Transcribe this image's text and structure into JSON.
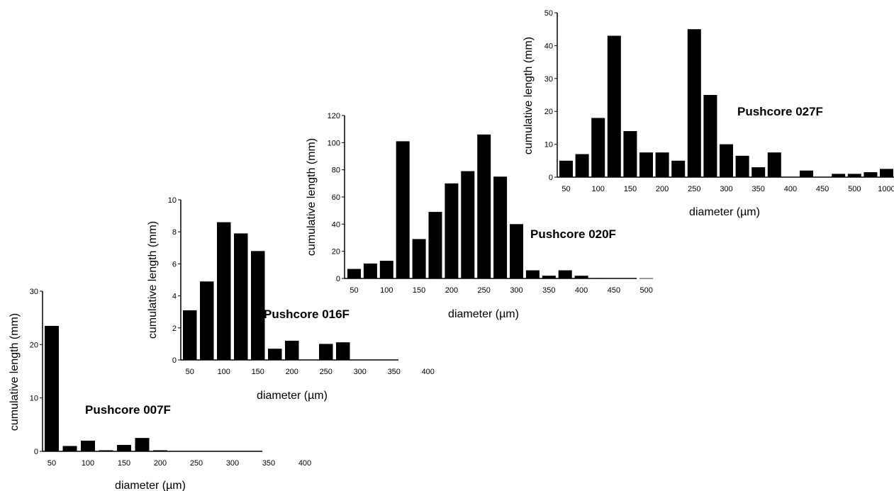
{
  "chart_data": [
    {
      "type": "bar",
      "title": "Pushcore 007F",
      "xlabel": "diameter (µm)",
      "ylabel": "cumulative length (mm)",
      "x_ticks": [
        "50",
        "100",
        "150",
        "200",
        "250",
        "300",
        "350",
        "400"
      ],
      "y_ticks": [
        0,
        10,
        20,
        30
      ],
      "ylim": [
        0,
        30
      ],
      "values": [
        23.5,
        1.0,
        2.0,
        0.2,
        1.2,
        2.5,
        0.2,
        0,
        0,
        0,
        0,
        0,
        0,
        0,
        0
      ]
    },
    {
      "type": "bar",
      "title": "Pushcore 016F",
      "xlabel": "diameter (µm)",
      "ylabel": "cumulative length (mm)",
      "x_ticks": [
        "50",
        "100",
        "150",
        "200",
        "250",
        "300",
        "350",
        "400"
      ],
      "y_ticks": [
        0,
        2,
        4,
        6,
        8,
        10
      ],
      "ylim": [
        0,
        10
      ],
      "values": [
        3.1,
        4.9,
        8.6,
        7.9,
        6.8,
        0.7,
        1.2,
        0,
        1.0,
        1.1,
        0,
        0,
        0,
        0,
        0
      ]
    },
    {
      "type": "bar",
      "title": "Pushcore 020F",
      "xlabel": "diameter (µm)",
      "ylabel": "cumulative length (mm)",
      "x_ticks": [
        "50",
        "100",
        "150",
        "200",
        "250",
        "300",
        "350",
        "400",
        "450",
        "500"
      ],
      "y_ticks": [
        0,
        20,
        40,
        60,
        80,
        100,
        120
      ],
      "ylim": [
        0,
        120
      ],
      "values": [
        7,
        11,
        13,
        101,
        29,
        49,
        70,
        79,
        106,
        75,
        40,
        6,
        2,
        6,
        2,
        0.3,
        0.2,
        0.2,
        0.2
      ]
    },
    {
      "type": "bar",
      "title": "Pushcore 027F",
      "xlabel": "diameter (µm)",
      "ylabel": "cumulative length (mm)",
      "x_ticks": [
        "50",
        "100",
        "150",
        "200",
        "250",
        "300",
        "350",
        "400",
        "450",
        "500",
        "1000"
      ],
      "y_ticks": [
        0,
        10,
        20,
        30,
        40,
        50
      ],
      "ylim": [
        0,
        50
      ],
      "values": [
        5,
        7,
        18,
        43,
        14,
        7.5,
        7.5,
        5,
        45,
        25,
        10,
        6.5,
        3,
        7.5,
        0,
        2,
        0,
        1,
        1,
        1.5,
        2.5,
        2.5
      ]
    }
  ]
}
